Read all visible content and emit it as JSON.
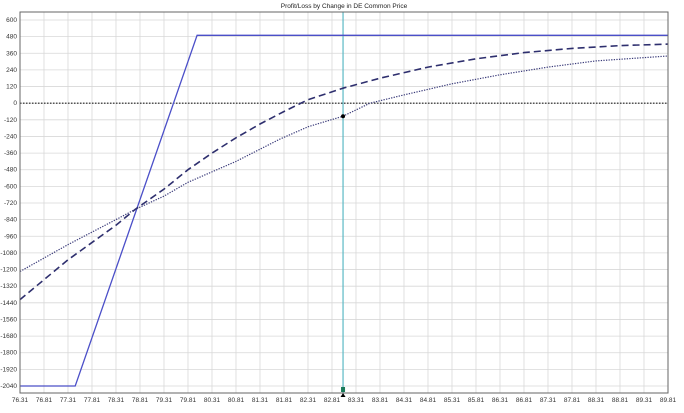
{
  "chart_data": {
    "type": "line",
    "title": "Profit/Loss by Change in DE Common Price",
    "xlabel": "",
    "ylabel": "",
    "xlim": [
      76.31,
      89.81
    ],
    "ylim": [
      -2040,
      600
    ],
    "grid": true,
    "x_ticks": [
      "76.31",
      "76.81",
      "77.31",
      "77.81",
      "78.31",
      "78.81",
      "79.31",
      "79.81",
      "80.31",
      "80.81",
      "81.31",
      "81.81",
      "82.31",
      "82.81",
      "83.31",
      "83.81",
      "84.31",
      "84.81",
      "85.31",
      "85.81",
      "86.31",
      "86.81",
      "87.31",
      "87.81",
      "88.31",
      "88.81",
      "89.31",
      "89.81"
    ],
    "y_ticks": [
      "600",
      "480",
      "360",
      "240",
      "120",
      "0",
      "-120",
      "-240",
      "-360",
      "-480",
      "-600",
      "-720",
      "-840",
      "-960",
      "-1080",
      "-1200",
      "-1320",
      "-1440",
      "-1560",
      "-1680",
      "-1800",
      "-1920",
      "-2040"
    ],
    "series": [
      {
        "style": "solid",
        "color": "#4b4fc8",
        "points": [
          [
            76.31,
            -2040
          ],
          [
            77.46,
            -2040
          ],
          [
            80.0,
            490
          ],
          [
            89.81,
            490
          ]
        ]
      },
      {
        "style": "dashed",
        "color": "#2e2f6e",
        "points": [
          [
            76.31,
            -1417
          ],
          [
            77.31,
            -1130
          ],
          [
            78.31,
            -880
          ],
          [
            78.71,
            -766
          ],
          [
            79.31,
            -620
          ],
          [
            79.81,
            -480
          ],
          [
            80.31,
            -360
          ],
          [
            80.81,
            -250
          ],
          [
            81.31,
            -150
          ],
          [
            81.81,
            -60
          ],
          [
            82.31,
            25
          ],
          [
            83.04,
            108
          ],
          [
            83.81,
            180
          ],
          [
            84.81,
            260
          ],
          [
            85.81,
            320
          ],
          [
            86.81,
            365
          ],
          [
            87.81,
            395
          ],
          [
            88.81,
            415
          ],
          [
            89.81,
            426
          ]
        ]
      },
      {
        "style": "dotted",
        "color": "#3a3b7a",
        "points": [
          [
            76.31,
            -1214
          ],
          [
            77.31,
            -1020
          ],
          [
            78.31,
            -840
          ],
          [
            78.71,
            -766
          ],
          [
            79.31,
            -670
          ],
          [
            79.81,
            -571
          ],
          [
            80.81,
            -420
          ],
          [
            81.72,
            -260
          ],
          [
            82.31,
            -170
          ],
          [
            83.04,
            -94
          ],
          [
            83.6,
            0
          ],
          [
            84.31,
            60
          ],
          [
            85.31,
            140
          ],
          [
            86.31,
            205
          ],
          [
            87.31,
            260
          ],
          [
            88.31,
            305
          ],
          [
            89.81,
            340
          ]
        ]
      }
    ],
    "zero_line": 0,
    "current_price_marker": 83.04,
    "current_point": [
      83.04,
      -94
    ],
    "colors": {
      "cursor_line": "#5bb8c4",
      "marker": "#1a7a5a",
      "grid": "#d8d8d8"
    }
  }
}
